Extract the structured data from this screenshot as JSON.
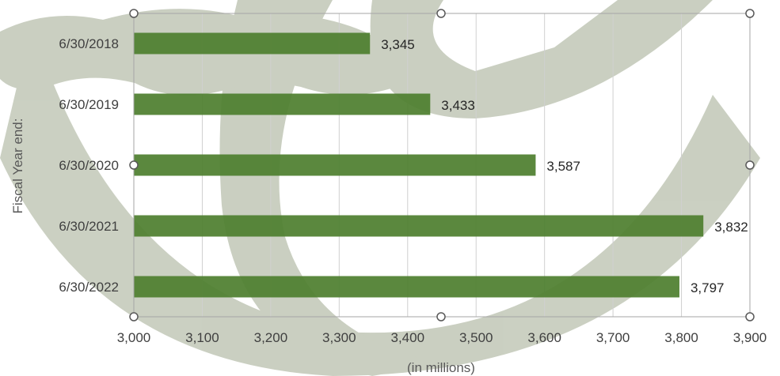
{
  "chart_data": {
    "type": "bar",
    "orientation": "horizontal",
    "title": "",
    "ylabel": "Fiscal Year end:",
    "xlabel": "(in millions)",
    "categories": [
      "6/30/2018",
      "6/30/2019",
      "6/30/2020",
      "6/30/2021",
      "6/30/2022"
    ],
    "values": [
      3345,
      3433,
      3587,
      3832,
      3797
    ],
    "data_labels": [
      "3,345",
      "3,433",
      "3,587",
      "3,832",
      "3,797"
    ],
    "xlim": [
      3000,
      3900
    ],
    "xticks": [
      3000,
      3100,
      3200,
      3300,
      3400,
      3500,
      3600,
      3700,
      3800,
      3900
    ],
    "xtick_labels": [
      "3,000",
      "3,100",
      "3,200",
      "3,300",
      "3,400",
      "3,500",
      "3,600",
      "3,700",
      "3,800",
      "3,900"
    ],
    "grid": "vertical",
    "legend": "none",
    "bar_color": "#4f7f2f",
    "watermark_color": "#b9c0ad",
    "gridline_color": "#d0d0d0"
  }
}
